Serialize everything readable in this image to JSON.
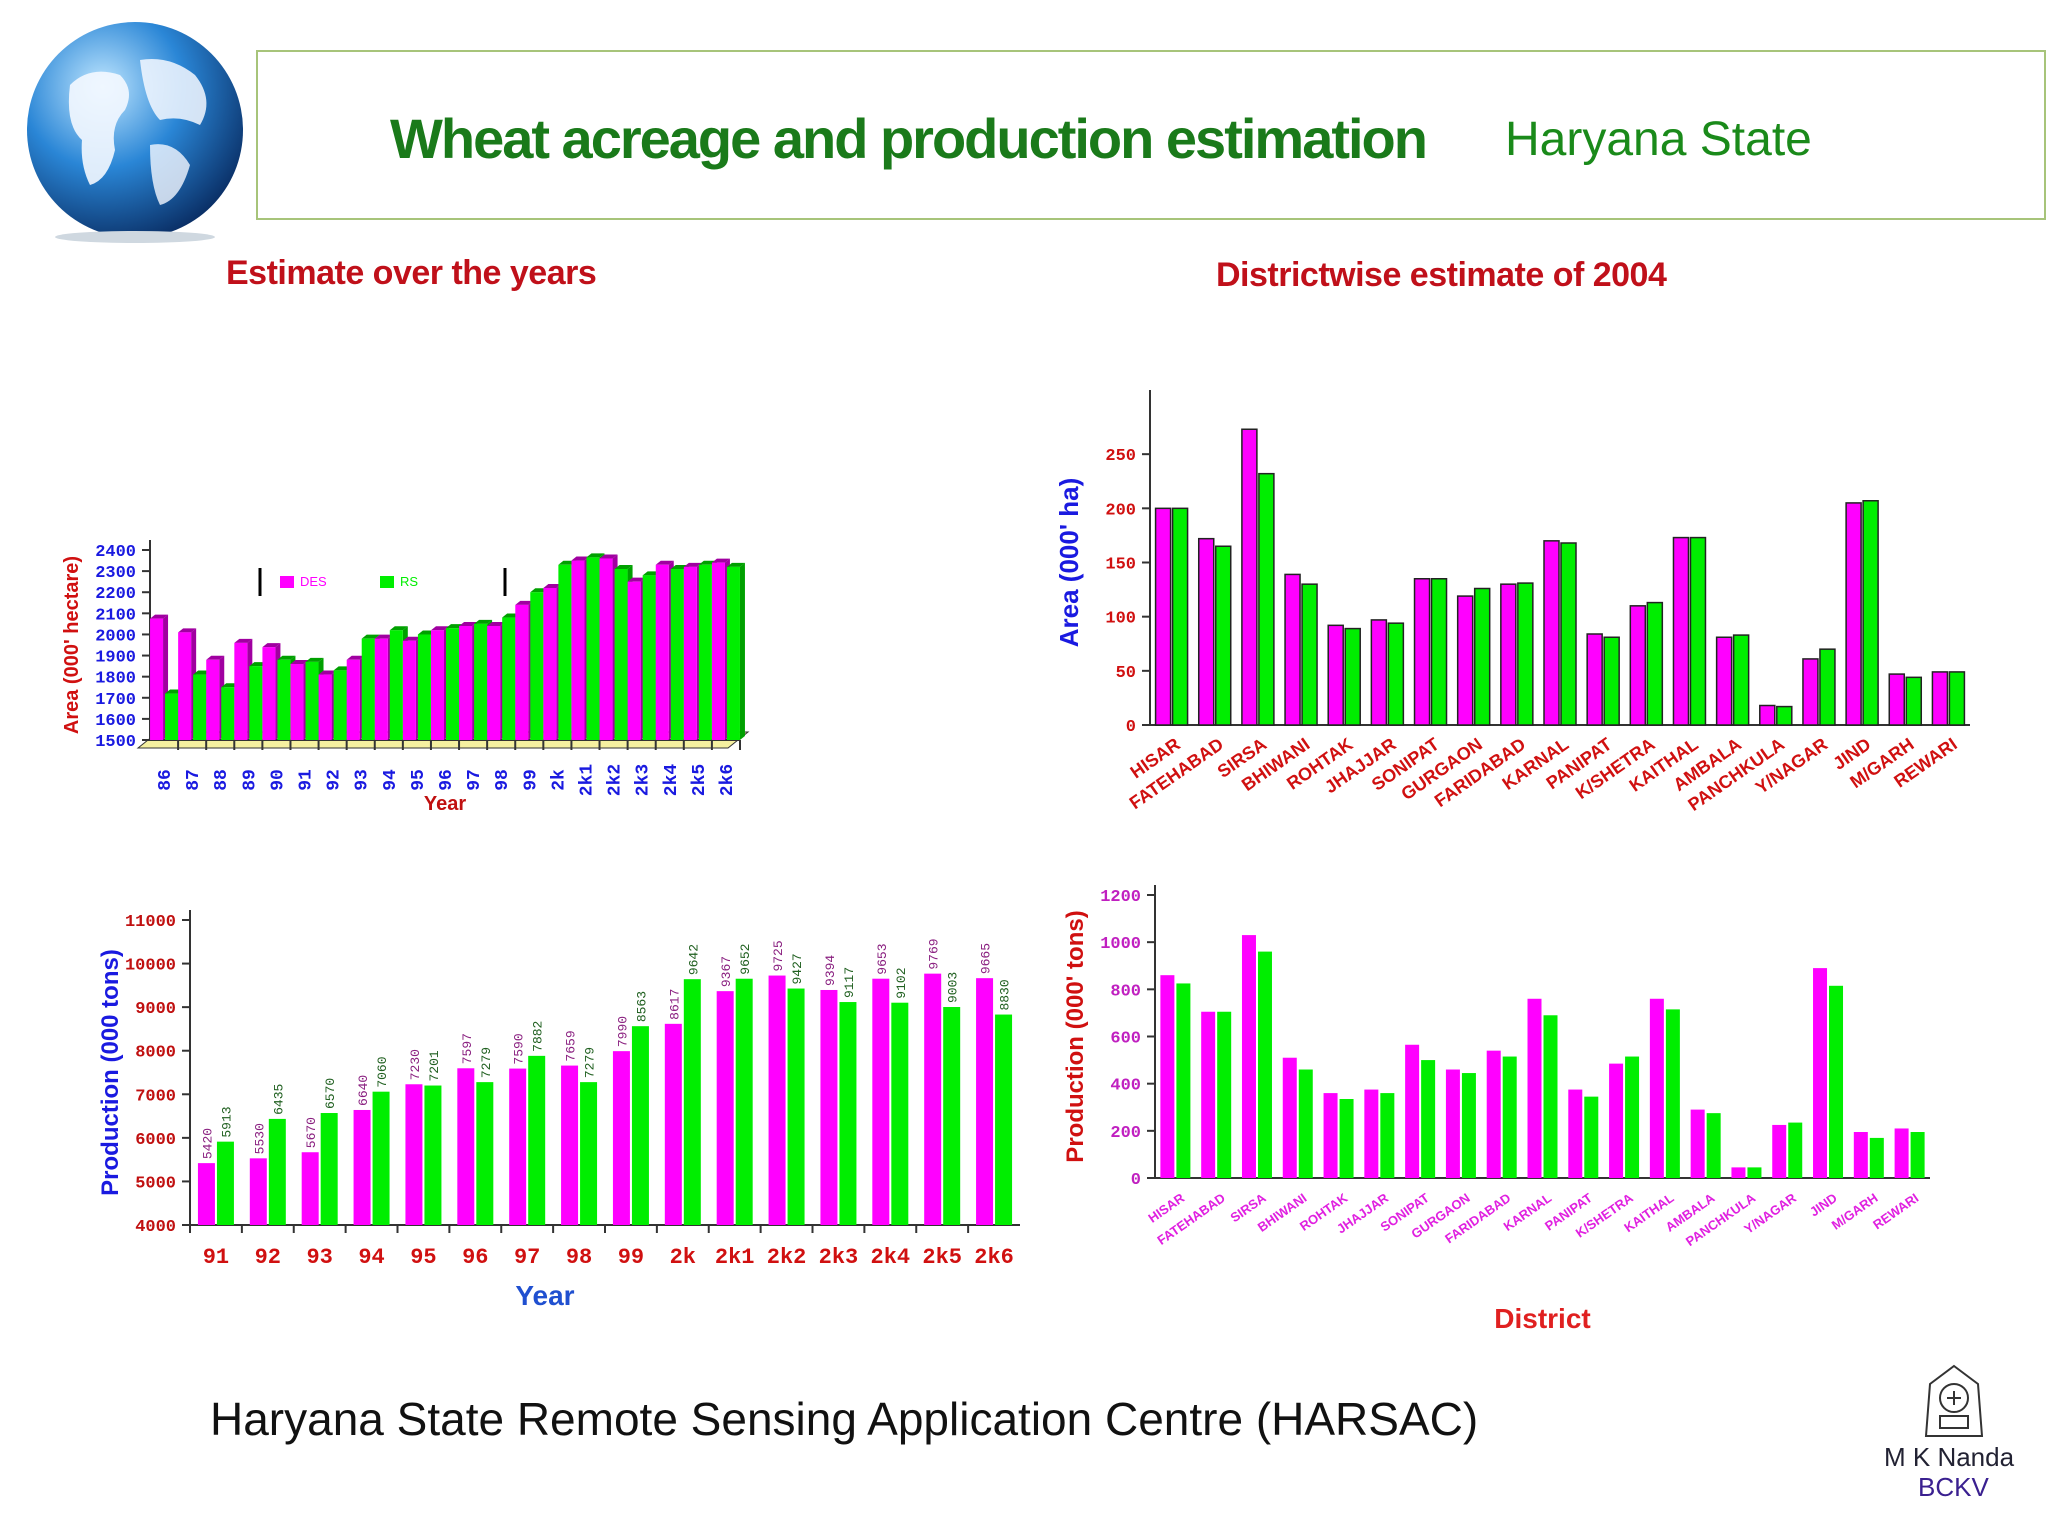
{
  "header": {
    "title": "Wheat acreage and production estimation",
    "subtitle": "Haryana State"
  },
  "sections": {
    "left": "Estimate over the  years",
    "right": "Districtwise estimate of  2004"
  },
  "footer": {
    "org": "Haryana State Remote Sensing Application Centre (HARSAC)",
    "author": "M K Nanda",
    "affiliation": "BCKV"
  },
  "colors": {
    "magenta": "#ff00ff",
    "green": "#00ee00",
    "title_green": "#1a7a1a",
    "section_red": "#c0101a"
  },
  "chart_data": [
    {
      "id": "area-years",
      "type": "bar",
      "ylabel": "Area (000' hectare)",
      "xlabel": "Year",
      "ylim": [
        1500,
        2400
      ],
      "yticks": [
        1500,
        1600,
        1700,
        1800,
        1900,
        2000,
        2100,
        2200,
        2300,
        2400
      ],
      "legend_position": "top-left",
      "categories": [
        "86",
        "87",
        "88",
        "89",
        "90",
        "91",
        "92",
        "93",
        "94",
        "95",
        "96",
        "97",
        "98",
        "99",
        "2k",
        "2k1",
        "2k2",
        "2k3",
        "2k4",
        "2k5",
        "2k6"
      ],
      "series": [
        {
          "name": "DES",
          "color": "#ff00ff",
          "values": [
            2075,
            2010,
            1880,
            1960,
            1940,
            1860,
            1810,
            1880,
            1980,
            1970,
            2020,
            2040,
            2040,
            2140,
            2220,
            2350,
            2360,
            2250,
            2330,
            2320,
            2340
          ]
        },
        {
          "name": "RS",
          "color": "#00ee00",
          "values": [
            1720,
            1810,
            1750,
            1850,
            1880,
            1870,
            1830,
            1980,
            2020,
            2000,
            2030,
            2050,
            2080,
            2200,
            2330,
            2365,
            2310,
            2280,
            2310,
            2330,
            2320
          ]
        }
      ]
    },
    {
      "id": "production-years",
      "type": "bar",
      "ylabel": "Production (000 tons)",
      "xlabel": "Year",
      "ylim": [
        4000,
        11000
      ],
      "yticks": [
        4000,
        5000,
        6000,
        7000,
        8000,
        9000,
        10000,
        11000
      ],
      "categories": [
        "91",
        "92",
        "93",
        "94",
        "95",
        "96",
        "97",
        "98",
        "99",
        "2k",
        "2k1",
        "2k2",
        "2k3",
        "2k4",
        "2k5",
        "2k6"
      ],
      "series": [
        {
          "name": "DES",
          "color": "#ff00ff",
          "values": [
            5420,
            5530,
            5670,
            6640,
            7230,
            7597,
            7590,
            7659,
            7990,
            8617,
            9367,
            9725,
            9394,
            9653,
            9769,
            9665
          ]
        },
        {
          "name": "RS",
          "color": "#00ee00",
          "values": [
            5913,
            6435,
            6570,
            7060,
            7201,
            7279,
            7882,
            7279,
            8563,
            9642,
            9652,
            9427,
            9117,
            9102,
            9003,
            8830
          ]
        }
      ]
    },
    {
      "id": "area-district",
      "type": "bar",
      "ylabel": "Area (000' ha)",
      "xlabel": "",
      "ylim": [
        0,
        300
      ],
      "yticks": [
        0,
        50,
        100,
        150,
        200,
        250
      ],
      "categories": [
        "HISAR",
        "FATEHABAD",
        "SIRSA",
        "BHIWANI",
        "ROHTAK",
        "JHAJJAR",
        "SONIPAT",
        "GURGAON",
        "FARIDABAD",
        "KARNAL",
        "PANIPAT",
        "K/SHETRA",
        "KAITHAL",
        "AMBALA",
        "PANCHKULA",
        "Y/NAGAR",
        "JIND",
        "M/GARH",
        "REWARI"
      ],
      "series": [
        {
          "name": "DES",
          "color": "#ff00ff",
          "values": [
            200,
            172,
            273,
            139,
            92,
            97,
            135,
            119,
            130,
            170,
            84,
            110,
            173,
            81,
            18,
            61,
            205,
            47,
            49
          ]
        },
        {
          "name": "RS",
          "color": "#00ee00",
          "values": [
            200,
            165,
            232,
            130,
            89,
            94,
            135,
            126,
            131,
            168,
            81,
            113,
            173,
            83,
            17,
            70,
            207,
            44,
            49
          ]
        }
      ]
    },
    {
      "id": "production-district",
      "type": "bar",
      "ylabel": "Production (000' tons)",
      "xlabel": "District",
      "ylim": [
        0,
        1200
      ],
      "yticks": [
        0,
        200,
        400,
        600,
        800,
        1000,
        1200
      ],
      "categories": [
        "HISAR",
        "FATEHABAD",
        "SIRSA",
        "BHIWANI",
        "ROHTAK",
        "JHAJJAR",
        "SONIPAT",
        "GURGAON",
        "FARIDABAD",
        "KARNAL",
        "PANIPAT",
        "K/SHETRA",
        "KAITHAL",
        "AMBALA",
        "PANCHKULA",
        "Y/NAGAR",
        "JIND",
        "M/GARH",
        "REWARI"
      ],
      "series": [
        {
          "name": "DES",
          "color": "#ff00ff",
          "values": [
            860,
            705,
            1030,
            510,
            360,
            375,
            565,
            460,
            540,
            760,
            375,
            485,
            760,
            290,
            45,
            225,
            890,
            195,
            210
          ]
        },
        {
          "name": "RS",
          "color": "#00ee00",
          "values": [
            825,
            705,
            960,
            460,
            335,
            360,
            500,
            445,
            515,
            690,
            345,
            515,
            715,
            275,
            45,
            235,
            815,
            170,
            195
          ]
        }
      ]
    }
  ]
}
